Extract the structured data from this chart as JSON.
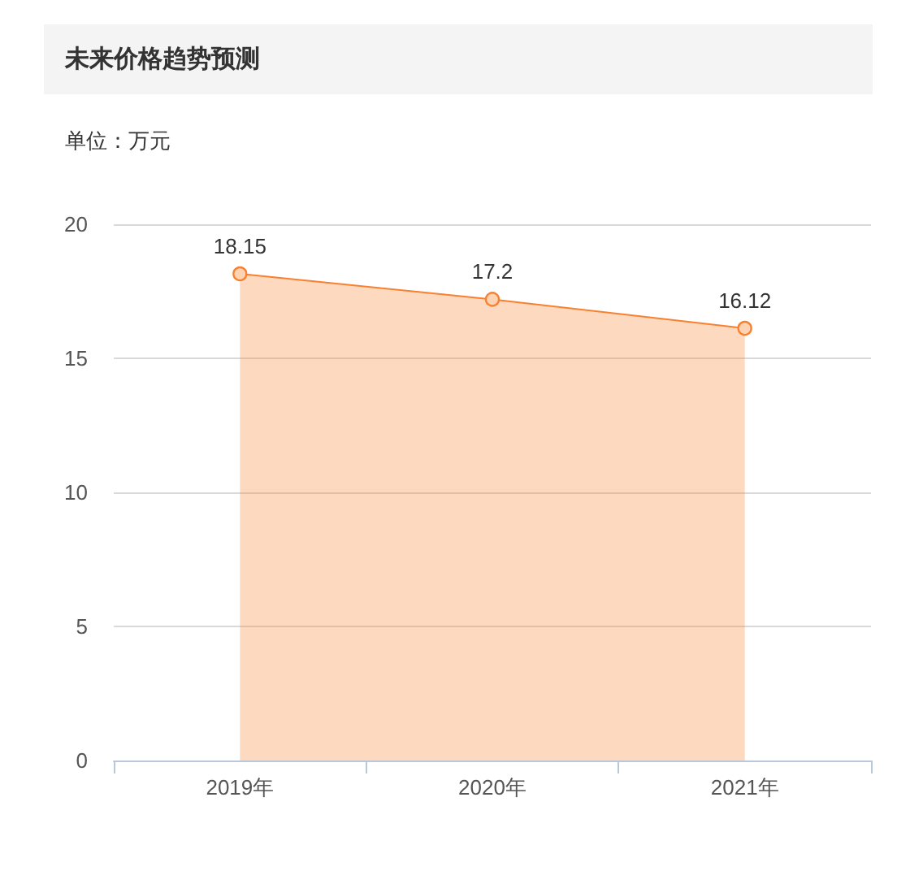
{
  "chart_data": {
    "type": "area",
    "title": "未来价格趋势预测",
    "subtitle": "单位：万元",
    "categories": [
      "2019年",
      "2020年",
      "2021年"
    ],
    "series": [
      {
        "color": "#f8802f",
        "values": [
          18.15,
          17.2,
          16.12
        ]
      }
    ],
    "ylim": [
      0,
      20
    ],
    "yticks": [
      0,
      5,
      10,
      15,
      20
    ],
    "grid": "y",
    "marker": "circle",
    "data_labels": true
  }
}
